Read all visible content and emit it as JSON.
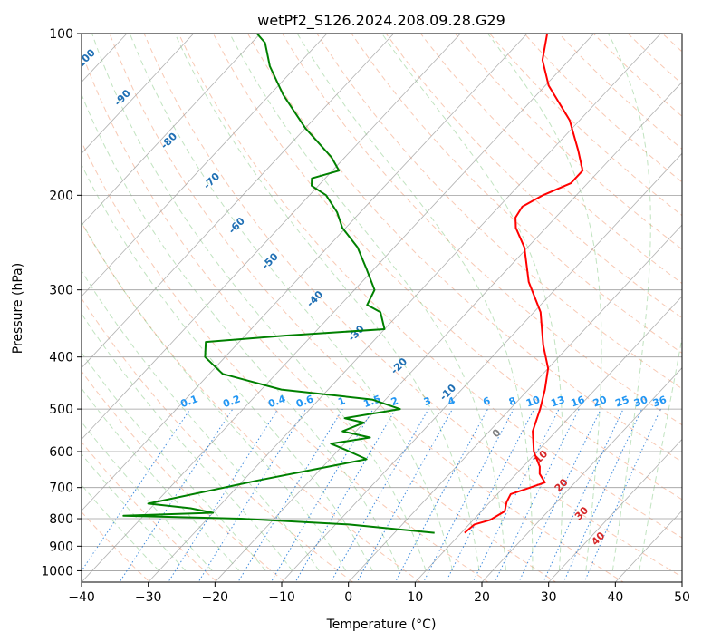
{
  "chart_data": {
    "type": "line",
    "title": "wetPf2_S126.2024.208.09.28.G29",
    "xlabel": "Temperature (°C)",
    "ylabel": "Pressure (hPa)",
    "xlim": [
      -40,
      50
    ],
    "ylim": [
      1050,
      100
    ],
    "y_scale": "log",
    "skew": "skew-T log-p",
    "x_ticks": [
      "−40",
      "−30",
      "−20",
      "−10",
      "0",
      "10",
      "20",
      "30",
      "40",
      "50"
    ],
    "y_ticks": [
      "100",
      "200",
      "300",
      "400",
      "500",
      "600",
      "700",
      "800",
      "900",
      "1000"
    ],
    "grid": true,
    "series": [
      {
        "color": "#ff0000",
        "x_unit": "temperature °C",
        "points": [
          [
            10.5,
            850
          ],
          [
            10.8,
            820
          ],
          [
            12.5,
            805
          ],
          [
            13.5,
            775
          ],
          [
            12.5,
            745
          ],
          [
            12.0,
            720
          ],
          [
            14.0,
            700
          ],
          [
            15.5,
            685
          ],
          [
            13.5,
            660
          ],
          [
            12.5,
            640
          ],
          [
            9.5,
            600
          ],
          [
            6.5,
            550
          ],
          [
            4.5,
            500
          ],
          [
            2.5,
            460
          ],
          [
            0.0,
            420
          ],
          [
            -4.0,
            380
          ],
          [
            -9.0,
            330
          ],
          [
            -15.0,
            290
          ],
          [
            -20.5,
            250
          ],
          [
            -24.5,
            230
          ],
          [
            -26.0,
            220
          ],
          [
            -26.5,
            210
          ],
          [
            -25.0,
            200
          ],
          [
            -22.5,
            190
          ],
          [
            -22.5,
            180
          ],
          [
            -26.0,
            165
          ],
          [
            -31.5,
            145
          ],
          [
            -39.5,
            125
          ],
          [
            -44.0,
            112
          ],
          [
            -47.0,
            100
          ]
        ]
      },
      {
        "color": "#008000",
        "x_unit": "dewpoint °C",
        "points": [
          [
            6.0,
            850
          ],
          [
            -8.0,
            820
          ],
          [
            -25.0,
            800
          ],
          [
            -43.0,
            790
          ],
          [
            -30.0,
            780
          ],
          [
            -34.0,
            765
          ],
          [
            -41.0,
            750
          ],
          [
            -28.0,
            680
          ],
          [
            -14.5,
            620
          ],
          [
            -19.0,
            595
          ],
          [
            -22.0,
            580
          ],
          [
            -17.0,
            565
          ],
          [
            -22.0,
            550
          ],
          [
            -20.0,
            530
          ],
          [
            -23.5,
            520
          ],
          [
            -16.5,
            500
          ],
          [
            -22.0,
            480
          ],
          [
            -37.0,
            460
          ],
          [
            -48.0,
            430
          ],
          [
            -53.0,
            400
          ],
          [
            -55.0,
            375
          ],
          [
            -44.0,
            365
          ],
          [
            -30.0,
            355
          ],
          [
            -33.0,
            330
          ],
          [
            -36.0,
            320
          ],
          [
            -37.0,
            300
          ],
          [
            -41.0,
            275
          ],
          [
            -45.5,
            250
          ],
          [
            -50.5,
            230
          ],
          [
            -53.5,
            215
          ],
          [
            -57.5,
            200
          ],
          [
            -61.0,
            192
          ],
          [
            -62.0,
            186
          ],
          [
            -59.0,
            180
          ],
          [
            -62.0,
            170
          ],
          [
            -70.0,
            150
          ],
          [
            -78.0,
            130
          ],
          [
            -84.0,
            115
          ],
          [
            -88.0,
            104
          ],
          [
            -90.5,
            100
          ]
        ]
      }
    ],
    "mixing_ratio_labels": [
      "0.1",
      "0.2",
      "0.4",
      "0.6",
      "1",
      "1.5",
      "2",
      "3",
      "4",
      "6",
      "8",
      "10",
      "13",
      "16",
      "20",
      "25",
      "30",
      "36"
    ],
    "moist_adiabat_labels": [
      "-100",
      "-90",
      "-80",
      "-70",
      "-60",
      "-50",
      "-40",
      "-30",
      "-20",
      "-10",
      "0",
      "10",
      "20",
      "30",
      "40"
    ]
  }
}
